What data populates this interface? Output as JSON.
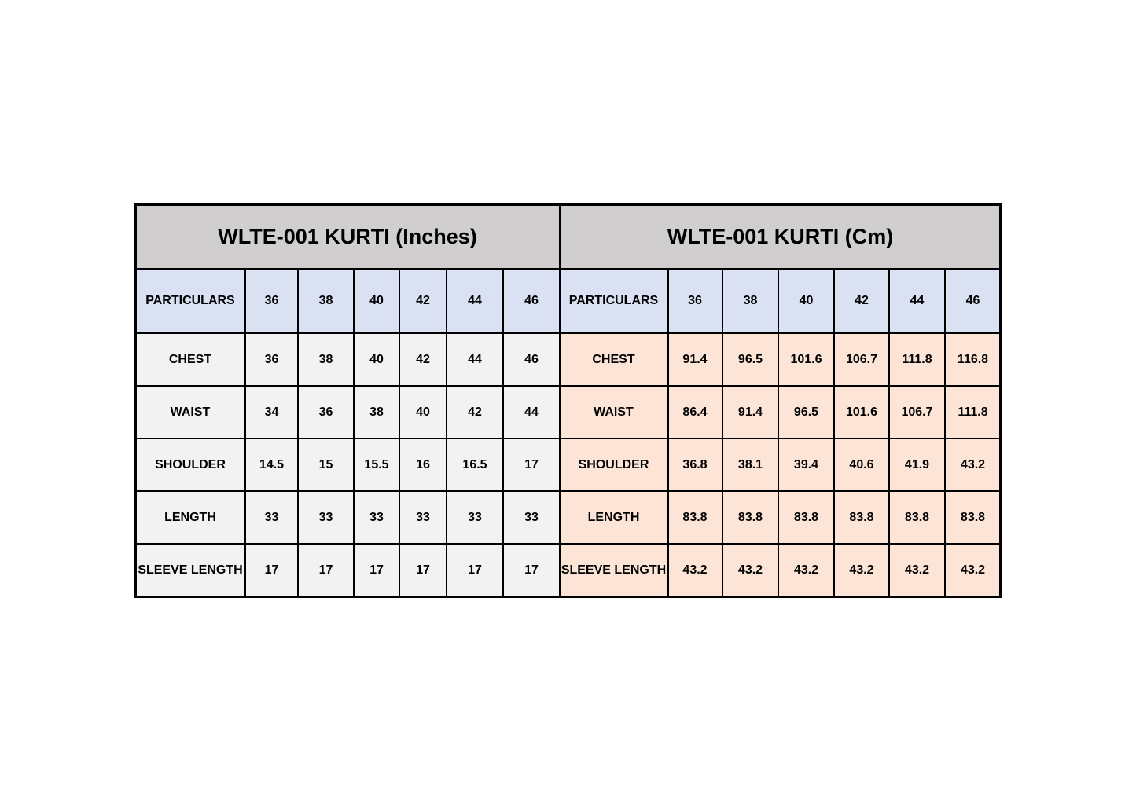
{
  "tables": [
    {
      "title": "WLTE-001 KURTI (Inches)",
      "header": [
        "PARTICULARS",
        "36",
        "38",
        "40",
        "42",
        "44",
        "46"
      ],
      "rows": [
        [
          "CHEST",
          36,
          38,
          40,
          42,
          44,
          46
        ],
        [
          "WAIST",
          34,
          36,
          38,
          40,
          42,
          44
        ],
        [
          "SHOULDER",
          14.5,
          15,
          15.5,
          16,
          16.5,
          17
        ],
        [
          "LENGTH",
          33,
          33,
          33,
          33,
          33,
          33
        ],
        [
          "SLEEVE LENGTH",
          17,
          17,
          17,
          17,
          17,
          17
        ]
      ]
    },
    {
      "title": "WLTE-001 KURTI (Cm)",
      "header": [
        "PARTICULARS",
        "36",
        "38",
        "40",
        "42",
        "44",
        "46"
      ],
      "rows": [
        [
          "CHEST",
          91.4,
          96.5,
          101.6,
          106.7,
          111.8,
          116.8
        ],
        [
          "WAIST",
          86.4,
          91.4,
          96.5,
          101.6,
          106.7,
          111.8
        ],
        [
          "SHOULDER",
          36.8,
          38.1,
          39.4,
          40.6,
          41.9,
          43.2
        ],
        [
          "LENGTH",
          83.8,
          83.8,
          83.8,
          83.8,
          83.8,
          83.8
        ],
        [
          "SLEEVE LENGTH",
          43.2,
          43.2,
          43.2,
          43.2,
          43.2,
          43.2
        ]
      ]
    }
  ]
}
